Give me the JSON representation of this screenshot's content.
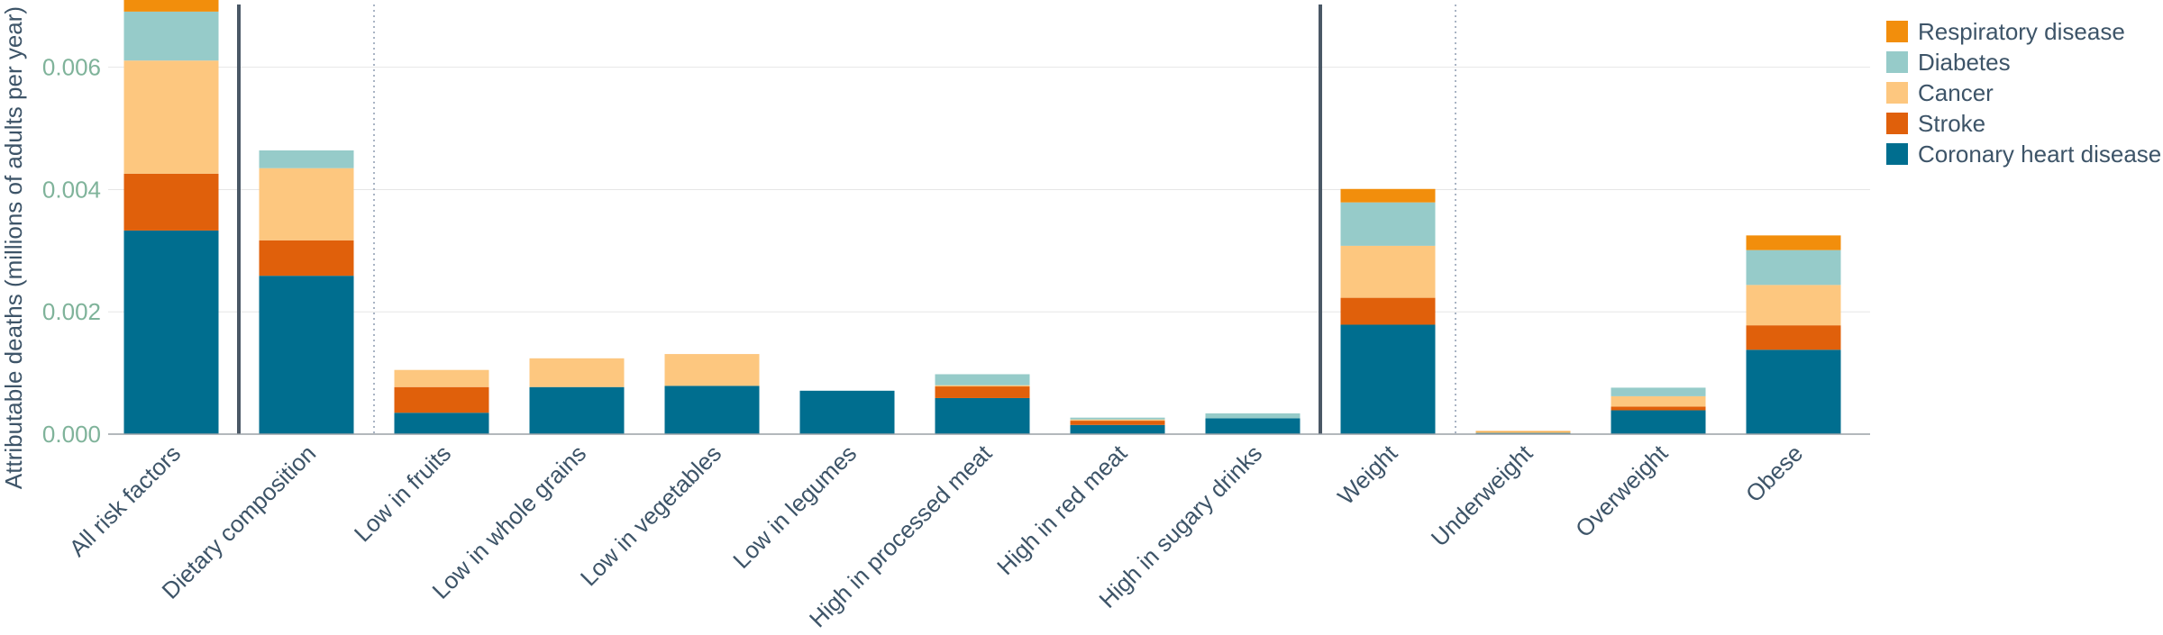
{
  "chart_data": {
    "type": "bar",
    "stacked": true,
    "ylabel": "Attributable deaths (millions of adults per year)",
    "ylim": [
      0,
      0.0071
    ],
    "yticks": [
      "0.000",
      "0.002",
      "0.004",
      "0.006"
    ],
    "ytick_values": [
      0,
      0.002,
      0.004,
      0.006
    ],
    "grid": true,
    "legend_position": "top-right",
    "categories": [
      "All risk factors",
      "Dietary composition",
      "Low in fruits",
      "Low in whole grains",
      "Low in vegetables",
      "Low in legumes",
      "High in processed meat",
      "High in red meat",
      "High in sugary drinks",
      "Weight",
      "Underweight",
      "Overweight",
      "Obese"
    ],
    "series": [
      {
        "name": "Coronary heart disease",
        "color": "#006e8f",
        "values": [
          0.00333,
          0.00259,
          0.00035,
          0.00077,
          0.00079,
          0.00071,
          0.00059,
          0.00015,
          0.00026,
          0.00179,
          2e-05,
          0.00039,
          0.00138
        ]
      },
      {
        "name": "Stroke",
        "color": "#e0600b",
        "values": [
          0.00093,
          0.00058,
          0.00042,
          0,
          0,
          0,
          0.00019,
          7e-05,
          0,
          0.00044,
          0,
          6e-05,
          0.0004
        ]
      },
      {
        "name": "Cancer",
        "color": "#fdc77f",
        "values": [
          0.00185,
          0.00118,
          0.00028,
          0.00047,
          0.00052,
          0,
          2e-05,
          2e-05,
          0,
          0.00085,
          2e-05,
          0.00017,
          0.00066
        ]
      },
      {
        "name": "Diabetes",
        "color": "#96cbc9",
        "values": [
          0.0008,
          0.00029,
          0,
          0,
          0,
          0,
          0.00018,
          3e-05,
          8e-05,
          0.00071,
          0,
          0.00014,
          0.00057
        ]
      },
      {
        "name": "Respiratory disease",
        "color": "#f28e0c",
        "values": [
          0.0002,
          0,
          0,
          0,
          0,
          0,
          0,
          0,
          0,
          0.00022,
          1e-05,
          0,
          0.00024
        ]
      }
    ],
    "separators": [
      {
        "after_category": "All risk factors",
        "style": "solid"
      },
      {
        "after_category": "Dietary composition",
        "style": "dotted"
      },
      {
        "after_category": "High in sugary drinks",
        "style": "solid"
      },
      {
        "after_category": "Weight",
        "style": "dotted"
      }
    ]
  }
}
